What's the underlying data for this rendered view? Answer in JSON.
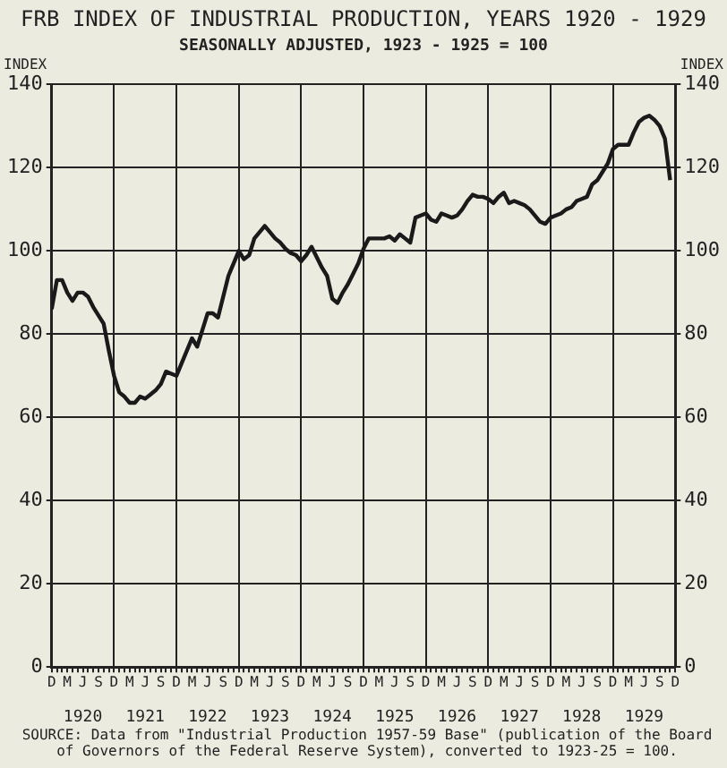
{
  "chart_data": {
    "type": "line",
    "title": "FRB INDEX OF INDUSTRIAL PRODUCTION, YEARS 1920 - 1929",
    "subtitle": "SEASONALLY ADJUSTED, 1923 - 1925 = 100",
    "ylabel": "INDEX",
    "y2label": "INDEX",
    "series": [
      {
        "color": "#1a1a1a",
        "values": [
          86,
          93,
          93,
          90,
          88,
          90,
          90,
          89,
          86.5,
          84.5,
          82.5,
          76,
          70,
          66,
          65,
          63.5,
          63.5,
          65,
          64.5,
          65.5,
          66.5,
          68,
          71,
          70.5,
          70,
          73,
          76,
          79,
          77,
          81,
          85,
          85,
          84,
          89,
          94,
          97,
          100,
          98,
          99,
          103,
          104.5,
          106,
          104.5,
          103,
          102,
          100.5,
          99.5,
          99,
          97.5,
          99,
          101,
          98.5,
          96,
          94,
          88.5,
          87.5,
          90,
          92,
          94.5,
          97,
          100.5,
          103,
          103,
          103,
          103,
          103.5,
          102.5,
          104,
          103,
          102,
          108,
          108.5,
          109,
          107.5,
          107,
          109,
          108.5,
          108,
          108.5,
          110,
          112,
          113.5,
          113,
          113,
          112.5,
          111.5,
          113,
          114,
          111.5,
          112,
          111.5,
          111,
          110,
          108.5,
          107,
          106.5,
          108,
          108.5,
          109,
          110,
          110.5,
          112,
          112.5,
          113,
          116,
          117,
          119,
          121,
          124.5,
          125.5,
          125.5,
          125.5,
          128.5,
          131,
          132,
          132.5,
          131.5,
          130,
          127,
          117,
          null
        ]
      }
    ],
    "categories": [
      "D",
      null,
      null,
      "M",
      null,
      null,
      "J",
      null,
      null,
      "S",
      null,
      null,
      "D",
      null,
      null,
      "M",
      null,
      null,
      "J",
      null,
      null,
      "S",
      null,
      null,
      "D",
      null,
      null,
      "M",
      null,
      null,
      "J",
      null,
      null,
      "S",
      null,
      null,
      "D",
      null,
      null,
      "M",
      null,
      null,
      "J",
      null,
      null,
      "S",
      null,
      null,
      "D",
      null,
      null,
      "M",
      null,
      null,
      "J",
      null,
      null,
      "S",
      null,
      null,
      "D",
      null,
      null,
      "M",
      null,
      null,
      "J",
      null,
      null,
      "S",
      null,
      null,
      "D",
      null,
      null,
      "M",
      null,
      null,
      "J",
      null,
      null,
      "S",
      null,
      null,
      "D",
      null,
      null,
      "M",
      null,
      null,
      "J",
      null,
      null,
      "S",
      null,
      null,
      "D",
      null,
      null,
      "M",
      null,
      null,
      "J",
      null,
      null,
      "S",
      null,
      null,
      "D",
      null,
      null,
      "M",
      null,
      null,
      "J",
      null,
      null,
      "S",
      null,
      null,
      "D"
    ],
    "x2lim": [
      "1919-12",
      "1929-12"
    ],
    "x2ticks": [
      {
        "value": "1920-06",
        "label": "1920"
      },
      {
        "value": "1921-06",
        "label": "1921"
      },
      {
        "value": "1922-06",
        "label": "1922"
      },
      {
        "value": "1923-06",
        "label": "1923"
      },
      {
        "value": "1924-06",
        "label": "1924"
      },
      {
        "value": "1925-06",
        "label": "1925"
      },
      {
        "value": "1926-06",
        "label": "1926"
      },
      {
        "value": "1927-06",
        "label": "1927"
      },
      {
        "value": "1928-06",
        "label": "1928"
      },
      {
        "value": "1929-06",
        "label": "1929"
      }
    ],
    "ylim": [
      0,
      140
    ],
    "yticks": [
      0,
      20,
      40,
      60,
      80,
      100,
      120,
      140
    ],
    "y2lim": [
      0,
      140
    ],
    "y2ticks": [
      0,
      20,
      40,
      60,
      80,
      100,
      120,
      140
    ],
    "grid": true,
    "marker": "none",
    "line_style": "solid",
    "annotations": [
      "SOURCE: Data from \"Industrial Production 1957-59 Base\" (publication of the Board of Governors of the Federal Reserve System), converted to 1923-25 = 100."
    ]
  }
}
